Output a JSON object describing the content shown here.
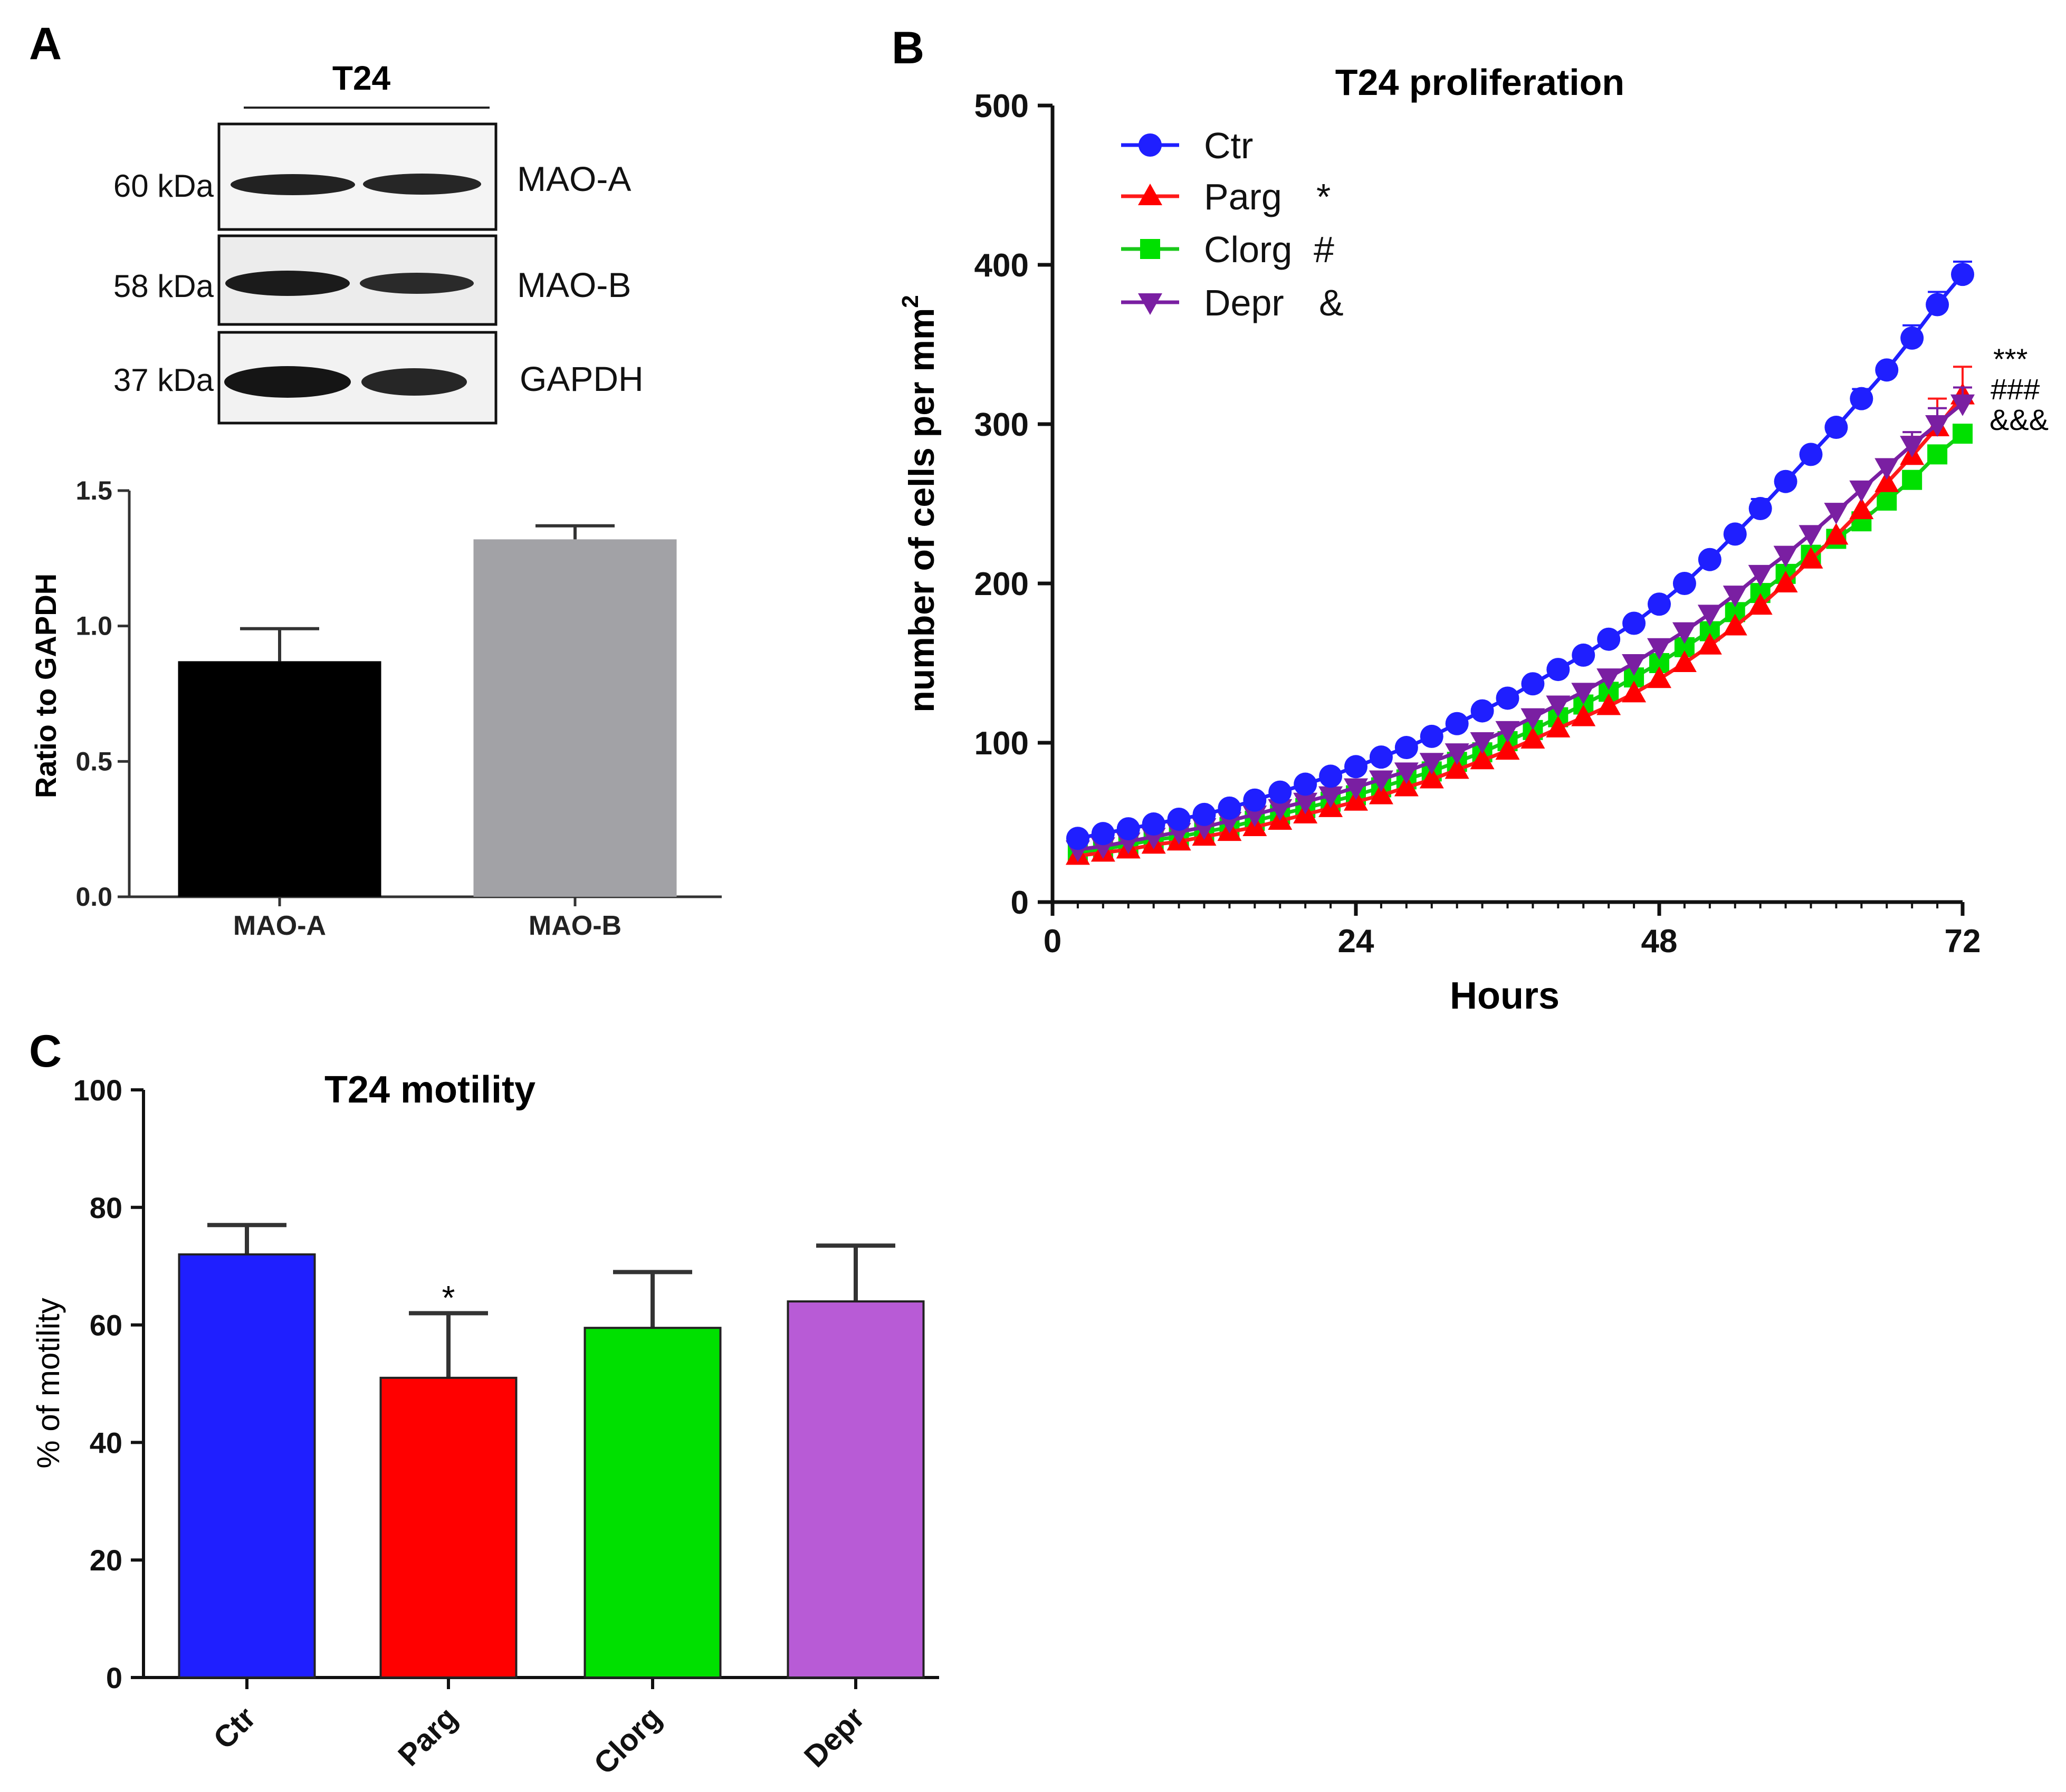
{
  "panels": {
    "a": {
      "letter": "A"
    },
    "b": {
      "letter": "B"
    },
    "c": {
      "letter": "C"
    }
  },
  "blot": {
    "cell_line": "T24",
    "rows": [
      {
        "kda": "60 kDa",
        "protein": "MAO-A"
      },
      {
        "kda": "58 kDa",
        "protein": "MAO-B"
      },
      {
        "kda": "37 kDa",
        "protein": "GAPDH"
      }
    ]
  },
  "colors": {
    "ctr": "#1f1fff",
    "parg": "#ff0000",
    "clorg": "#00e000",
    "depr": "#b85bd6",
    "maoa_bar": "#000000",
    "maob_bar": "#a2a2a6",
    "parg_line": "#ff1a1a",
    "clorg_line": "#19c819",
    "depr_line": "#7a1fa2"
  },
  "significance": {
    "parg": "***",
    "clorg": "###",
    "depr": "&&&",
    "motility_parg": "*"
  },
  "chart_data": [
    {
      "id": "ratio",
      "type": "bar",
      "title": "",
      "xlabel": "",
      "ylabel": "Ratio to GAPDH",
      "categories": [
        "MAO-A",
        "MAO-B"
      ],
      "values": [
        0.87,
        1.32
      ],
      "errors": [
        0.12,
        0.05
      ],
      "ylim": [
        0,
        1.5
      ],
      "yticks": [
        "0.0",
        "0.5",
        "1.0",
        "1.5"
      ],
      "tick_values": [
        0,
        0.5,
        1.0,
        1.5
      ]
    },
    {
      "id": "proliferation",
      "type": "line",
      "title": "T24 proliferation",
      "xlabel": "Hours",
      "ylabel": "number of cells per mm",
      "ylabel_sup": "2",
      "xlim": [
        0,
        72
      ],
      "ylim": [
        0,
        500
      ],
      "xticks": [
        "0",
        "24",
        "48",
        "72"
      ],
      "xtick_values": [
        0,
        24,
        48,
        72
      ],
      "yticks": [
        "0",
        "100",
        "200",
        "300",
        "400",
        "500"
      ],
      "ytick_values": [
        0,
        100,
        200,
        300,
        400,
        500
      ],
      "x": [
        2,
        4,
        6,
        8,
        10,
        12,
        14,
        16,
        18,
        20,
        22,
        24,
        26,
        28,
        30,
        32,
        34,
        36,
        38,
        40,
        42,
        44,
        46,
        48,
        50,
        52,
        54,
        56,
        58,
        60,
        62,
        64,
        66,
        68,
        70,
        72
      ],
      "series": [
        {
          "key": "ctr",
          "name": "Ctr",
          "sig": "",
          "marker": "circle",
          "values": [
            40,
            43,
            46,
            49,
            52,
            55,
            59,
            64,
            69,
            74,
            79,
            85,
            91,
            97,
            104,
            112,
            120,
            128,
            137,
            146,
            155,
            165,
            175,
            187,
            200,
            215,
            231,
            247,
            264,
            281,
            298,
            316,
            334,
            354,
            375,
            394
          ],
          "errors": [
            0,
            0,
            0,
            0,
            0,
            0,
            0,
            0,
            0,
            0,
            0,
            0,
            0,
            0,
            0,
            0,
            0,
            0,
            0,
            0,
            0,
            0,
            0,
            0,
            0,
            0,
            0,
            6,
            0,
            0,
            0,
            6,
            0,
            8,
            8,
            8
          ]
        },
        {
          "key": "parg",
          "name": "Parg",
          "sig": "*",
          "marker": "triangle-up",
          "values": [
            29,
            31,
            33,
            36,
            38,
            41,
            44,
            47,
            51,
            55,
            59,
            63,
            67,
            72,
            77,
            83,
            89,
            95,
            102,
            109,
            116,
            123,
            131,
            140,
            150,
            161,
            173,
            186,
            200,
            215,
            230,
            246,
            263,
            280,
            298,
            318
          ],
          "errors": [
            0,
            0,
            0,
            0,
            0,
            0,
            0,
            0,
            0,
            0,
            0,
            0,
            0,
            0,
            0,
            0,
            0,
            0,
            0,
            0,
            0,
            0,
            0,
            0,
            0,
            0,
            0,
            0,
            0,
            0,
            0,
            0,
            0,
            12,
            18,
            18
          ]
        },
        {
          "key": "clorg",
          "name": "Clorg",
          "sig": "#",
          "marker": "square",
          "values": [
            31,
            33,
            36,
            39,
            41,
            44,
            47,
            51,
            55,
            59,
            63,
            67,
            72,
            77,
            82,
            88,
            94,
            101,
            108,
            116,
            124,
            132,
            141,
            150,
            160,
            170,
            182,
            194,
            206,
            218,
            228,
            239,
            252,
            265,
            281,
            294
          ],
          "errors": [
            0,
            0,
            0,
            0,
            0,
            0,
            0,
            0,
            0,
            0,
            0,
            0,
            0,
            0,
            0,
            0,
            0,
            0,
            0,
            0,
            0,
            0,
            0,
            0,
            0,
            0,
            0,
            0,
            0,
            0,
            0,
            0,
            0,
            0,
            0,
            0
          ]
        },
        {
          "key": "depr",
          "name": "Depr",
          "sig": "&",
          "marker": "triangle-down",
          "values": [
            33,
            35,
            38,
            41,
            44,
            47,
            51,
            55,
            59,
            63,
            67,
            72,
            77,
            82,
            88,
            94,
            101,
            108,
            116,
            124,
            132,
            141,
            150,
            160,
            170,
            181,
            193,
            206,
            218,
            231,
            245,
            259,
            273,
            287,
            300,
            313
          ],
          "errors": [
            0,
            0,
            0,
            0,
            0,
            0,
            0,
            0,
            0,
            0,
            0,
            0,
            0,
            0,
            0,
            0,
            0,
            0,
            0,
            0,
            0,
            0,
            0,
            0,
            0,
            0,
            0,
            0,
            0,
            0,
            0,
            0,
            0,
            8,
            10,
            10
          ]
        }
      ]
    },
    {
      "id": "motility",
      "type": "bar",
      "title": "T24 motility",
      "xlabel": "",
      "ylabel": "% of motility",
      "categories": [
        "Ctr",
        "Parg",
        "Clorg",
        "Depr"
      ],
      "values": [
        72,
        51,
        59.5,
        64
      ],
      "errors": [
        5,
        11,
        9.5,
        9.5
      ],
      "ylim": [
        0,
        100
      ],
      "yticks": [
        "0",
        "20",
        "40",
        "60",
        "80",
        "100"
      ],
      "tick_values": [
        0,
        20,
        40,
        60,
        80,
        100
      ]
    }
  ]
}
